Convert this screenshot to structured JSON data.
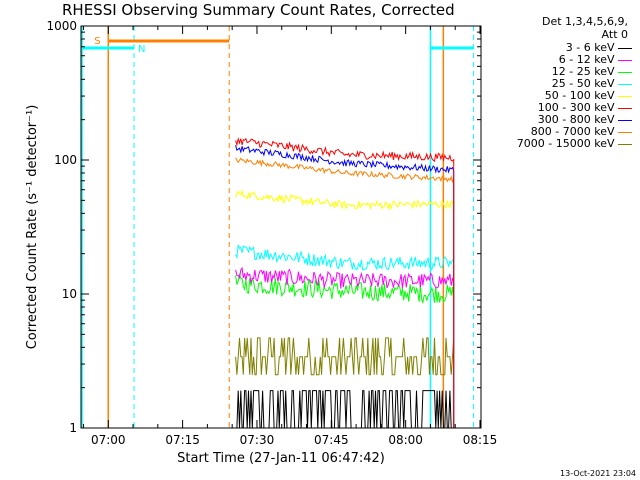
{
  "chart_data": {
    "type": "line",
    "title": "RHESSI Observing Summary Count Rates, Corrected",
    "xlabel": "Start Time (27-Jan-11 06:47:42)",
    "ylabel": "Corrected Count Rate (s⁻¹ detector⁻¹)",
    "yscale": "log",
    "ylim": [
      1,
      1000
    ],
    "xlim_minutes": [
      6.8,
      87.5
    ],
    "xtick_labels": [
      "07:00",
      "07:15",
      "07:30",
      "07:45",
      "08:00",
      "08:15"
    ],
    "xtick_minutes": [
      12.3,
      27.3,
      42.3,
      57.3,
      72.3,
      87.3
    ],
    "ytick_labels": [
      "1",
      "10",
      "100",
      "1000"
    ],
    "ytick_values": [
      1,
      10,
      100,
      1000
    ],
    "legend_header": [
      "Det 1,3,4,5,6,9,",
      "Att 0"
    ],
    "series": [
      {
        "name": "3 - 6 keV",
        "color": "#000000",
        "t_start": 38.0,
        "t_end": 82.0,
        "level_start": 1.5,
        "level_mid": 1.5,
        "level_end": 1.5,
        "noise": 0.25
      },
      {
        "name": "6 - 12 keV",
        "color": "#ff00ff",
        "t_start": 38.0,
        "t_end": 82.0,
        "level_start": 14.0,
        "level_mid": 12.5,
        "level_end": 12.5,
        "noise": 0.06
      },
      {
        "name": "12 - 25 keV",
        "color": "#00ff00",
        "t_start": 38.0,
        "t_end": 82.0,
        "level_start": 12.0,
        "level_mid": 10.5,
        "level_end": 10.0,
        "noise": 0.07
      },
      {
        "name": "25 - 50 keV",
        "color": "#00ffff",
        "t_start": 38.0,
        "t_end": 82.0,
        "level_start": 21.0,
        "level_mid": 17.0,
        "level_end": 17.0,
        "noise": 0.05
      },
      {
        "name": "50 - 100 keV",
        "color": "#ffff00",
        "t_start": 38.0,
        "t_end": 82.0,
        "level_start": 56.0,
        "level_mid": 46.0,
        "level_end": 47.0,
        "noise": 0.03
      },
      {
        "name": "100 - 300 keV",
        "color": "#ff0000",
        "t_start": 38.0,
        "t_end": 82.0,
        "level_start": 140.0,
        "level_mid": 110.0,
        "level_end": 104.0,
        "noise": 0.03
      },
      {
        "name": "300 - 800 keV",
        "color": "#0000ff",
        "t_start": 38.0,
        "t_end": 82.0,
        "level_start": 122.0,
        "level_mid": 95.0,
        "level_end": 84.0,
        "noise": 0.025
      },
      {
        "name": "800 - 7000 keV",
        "color": "#ff8000",
        "t_start": 38.0,
        "t_end": 82.0,
        "level_start": 100.0,
        "level_mid": 80.0,
        "level_end": 72.0,
        "noise": 0.02
      },
      {
        "name": "7000 - 15000 keV",
        "color": "#808000",
        "t_start": 38.0,
        "t_end": 82.0,
        "level_start": 3.5,
        "level_mid": 3.5,
        "level_end": 3.5,
        "noise": 0.18
      }
    ],
    "annotations": {
      "saa_label": "S",
      "night_label": "N",
      "saa_color": "#ff8000",
      "night_color": "#00ffff",
      "saa_bar_minutes": [
        12.3,
        36.7
      ],
      "night_bar1_minutes": [
        6.8,
        17.5
      ],
      "night_bar2_minutes": [
        77.3,
        86.0
      ],
      "solid_lines": [
        {
          "t": 7.0,
          "color": "#00ffff"
        },
        {
          "t": 12.3,
          "color": "#ff8000"
        },
        {
          "t": 77.3,
          "color": "#00ffff"
        },
        {
          "t": 79.9,
          "color": "#ff8000"
        }
      ],
      "dashed_lines": [
        {
          "t": 17.5,
          "color": "#00ffff"
        },
        {
          "t": 36.7,
          "color": "#ff8000"
        },
        {
          "t": 86.0,
          "color": "#00ffff"
        }
      ]
    }
  },
  "footer": "13-Oct-2021 23:04"
}
